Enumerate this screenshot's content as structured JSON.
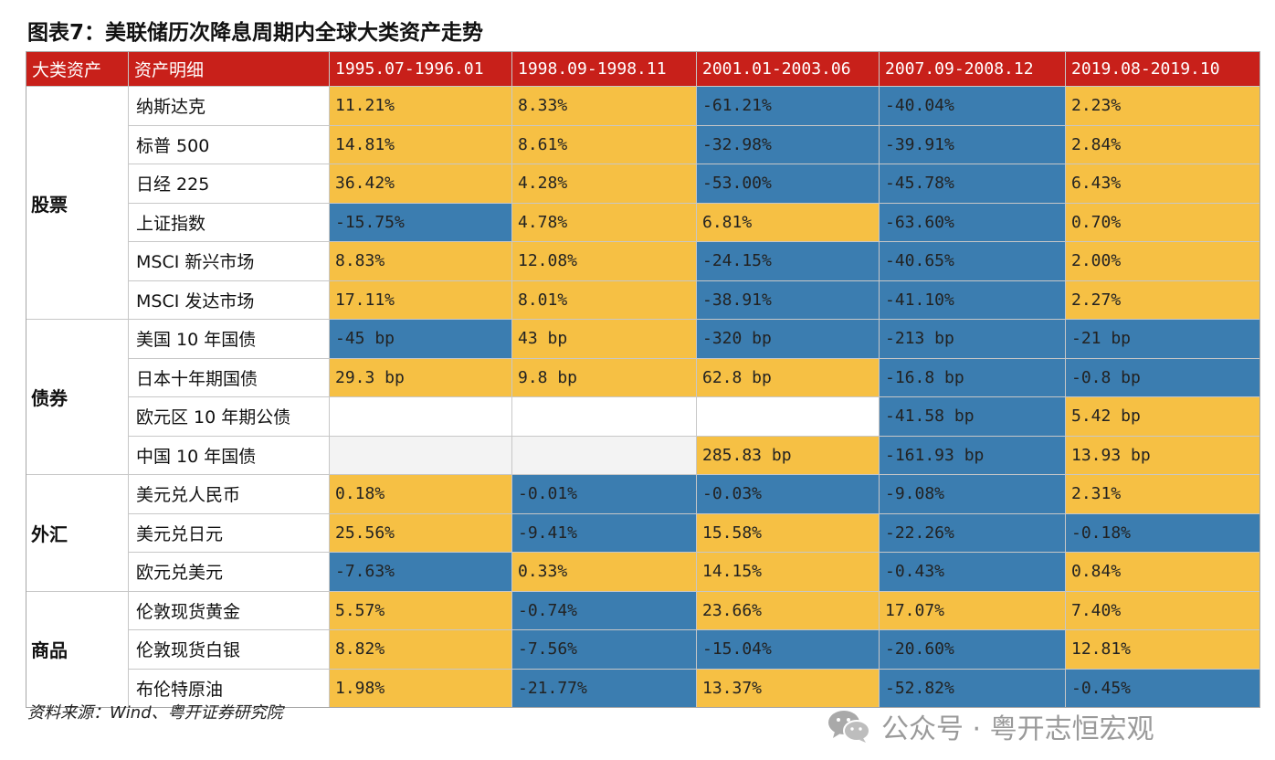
{
  "title": "图表7：美联储历次降息周期内全球大类资产走势",
  "headers": [
    "大类资产",
    "资产明细",
    "1995.07-1996.01",
    "1998.09-1998.11",
    "2001.01-2003.06",
    "2007.09-2008.12",
    "2019.08-2019.10"
  ],
  "categories": [
    {
      "name": "股票",
      "rows": 6
    },
    {
      "name": "债券",
      "rows": 4
    },
    {
      "name": "外汇",
      "rows": 3
    },
    {
      "name": "商品",
      "rows": 3
    }
  ],
  "rows": [
    {
      "asset": "纳斯达克",
      "values": [
        "11.21%",
        "8.33%",
        "-61.21%",
        "-40.04%",
        "2.23%"
      ]
    },
    {
      "asset": "标普 500",
      "values": [
        "14.81%",
        "8.61%",
        "-32.98%",
        "-39.91%",
        "2.84%"
      ]
    },
    {
      "asset": "日经 225",
      "values": [
        "36.42%",
        "4.28%",
        "-53.00%",
        "-45.78%",
        "6.43%"
      ]
    },
    {
      "asset": "上证指数",
      "values": [
        "-15.75%",
        "4.78%",
        "6.81%",
        "-63.60%",
        "0.70%"
      ]
    },
    {
      "asset": "MSCI 新兴市场",
      "values": [
        "8.83%",
        "12.08%",
        "-24.15%",
        "-40.65%",
        "2.00%"
      ]
    },
    {
      "asset": "MSCI 发达市场",
      "values": [
        "17.11%",
        "8.01%",
        "-38.91%",
        "-41.10%",
        "2.27%"
      ]
    },
    {
      "asset": "美国 10 年国债",
      "values": [
        "-45 bp",
        "43 bp",
        "-320 bp",
        "-213 bp",
        "-21 bp"
      ]
    },
    {
      "asset": "日本十年期国债",
      "values": [
        "29.3 bp",
        "9.8 bp",
        "62.8 bp",
        "-16.8 bp",
        "-0.8 bp"
      ]
    },
    {
      "asset": "欧元区 10 年期公债",
      "values": [
        "",
        "",
        "",
        "-41.58 bp",
        "5.42 bp"
      ]
    },
    {
      "asset": "中国 10 年国债",
      "values": [
        "",
        "",
        "285.83 bp",
        "-161.93 bp",
        "13.93 bp"
      ]
    },
    {
      "asset": "美元兑人民币",
      "values": [
        "0.18%",
        "-0.01%",
        "-0.03%",
        "-9.08%",
        "2.31%"
      ]
    },
    {
      "asset": "美元兑日元",
      "values": [
        "25.56%",
        "-9.41%",
        "15.58%",
        "-22.26%",
        "-0.18%"
      ]
    },
    {
      "asset": "欧元兑美元",
      "values": [
        "-7.63%",
        "0.33%",
        "14.15%",
        "-0.43%",
        "0.84%"
      ]
    },
    {
      "asset": "伦敦现货黄金",
      "values": [
        "5.57%",
        "-0.74%",
        "23.66%",
        "17.07%",
        "7.40%"
      ]
    },
    {
      "asset": "伦敦现货白银",
      "values": [
        "8.82%",
        "-7.56%",
        "-15.04%",
        "-20.60%",
        "12.81%"
      ]
    },
    {
      "asset": "布伦特原油",
      "values": [
        "1.98%",
        "-21.77%",
        "13.37%",
        "-52.82%",
        "-0.45%"
      ]
    }
  ],
  "colors": {
    "header_bg": "#c8201a",
    "positive": "#f6c044",
    "negative": "#3b7db0"
  },
  "source": "资料来源：Wind、粤开证券研究院",
  "watermark": "公众号 · 粤开志恒宏观",
  "watermark_icon": "wechat-icon"
}
